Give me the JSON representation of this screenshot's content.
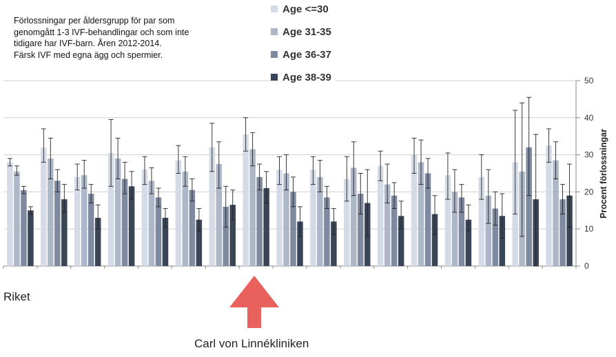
{
  "title_lines": [
    "Förlossningar per åldersgrupp för par som",
    "genomgått 1-3 IVF-behandlingar och som inte",
    "tidigare har IVF-barn. Åren 2012-2014.",
    "Färsk IVF med egna ägg och spermier."
  ],
  "annotations": {
    "riket": "Riket",
    "clinic": "Carl von Linnékliniken"
  },
  "chart_data": {
    "type": "bar",
    "title": "Förlossningar per åldersgrupp för par som genomgått 1-3 IVF-behandlingar och som inte tidigare har IVF-barn. Åren 2012-2014. Färsk IVF med egna ägg och spermier.",
    "ylabel": "Procent förlossningar",
    "xlabel": "",
    "ylim": [
      0,
      50
    ],
    "yticks": [
      0,
      10,
      20,
      30,
      40,
      50
    ],
    "grid": true,
    "legend_position": "top-center",
    "error_bars": true,
    "group_count": 17,
    "series": [
      {
        "name": "Age <=30",
        "color": "#d5dbe6",
        "values": [
          28,
          32,
          24,
          30.5,
          26,
          28.5,
          32,
          35.5,
          26,
          26,
          23.5,
          27,
          30,
          24.5,
          24,
          28,
          32.5
        ],
        "error_low": [
          27,
          28,
          20.5,
          21.5,
          22,
          25,
          25.5,
          31,
          22,
          22,
          17.5,
          23,
          25,
          18,
          18,
          14,
          28
        ],
        "error_high": [
          29,
          37,
          27.5,
          39.5,
          29.5,
          32.5,
          38.5,
          40,
          29.5,
          29.5,
          29.5,
          31,
          34.5,
          30.5,
          30,
          42,
          37
        ]
      },
      {
        "name": "Age 31-35",
        "color": "#aeb7c7",
        "values": [
          25.5,
          29,
          24.5,
          29,
          23,
          25.5,
          27.5,
          31.5,
          25,
          24,
          26.5,
          22,
          28,
          20,
          19,
          25.5,
          28.5
        ],
        "error_low": [
          24.5,
          23.5,
          21,
          23.5,
          19.5,
          21.5,
          21,
          27,
          20.5,
          20,
          19,
          17,
          22,
          14.5,
          11.5,
          8,
          23.5
        ],
        "error_high": [
          27,
          34.5,
          28.5,
          34.5,
          26.5,
          29.5,
          33.5,
          36,
          30,
          28.5,
          33.5,
          27.5,
          34,
          26,
          26,
          44,
          33.5
        ]
      },
      {
        "name": "Age 36-37",
        "color": "#7f8aa0",
        "values": [
          20.5,
          23,
          19.5,
          23.5,
          18.5,
          20.5,
          16,
          24,
          20,
          18.5,
          19.5,
          19,
          25,
          18.5,
          15.5,
          32,
          18
        ],
        "error_low": [
          19.5,
          20,
          17,
          19.5,
          16,
          17.5,
          10.5,
          20.5,
          16,
          15.5,
          14,
          15.5,
          21,
          14.5,
          11,
          19,
          14
        ],
        "error_high": [
          21.5,
          26,
          22,
          28,
          21,
          23.5,
          21.5,
          27.5,
          24,
          21.5,
          25,
          22.5,
          29,
          22,
          20,
          45.5,
          22
        ]
      },
      {
        "name": "Age 38-39",
        "color": "#3a4558",
        "values": [
          15,
          18,
          13,
          21.5,
          13,
          12.5,
          16.5,
          21,
          12,
          12,
          17,
          13.5,
          14,
          12.5,
          13.5,
          18,
          19
        ],
        "error_low": [
          14,
          14.5,
          10,
          18,
          10.5,
          9.5,
          12.5,
          17,
          8,
          8.5,
          8,
          10,
          8.5,
          9.5,
          7.5,
          0,
          10.5
        ],
        "error_high": [
          16,
          22,
          16.5,
          25.5,
          15.5,
          15.5,
          20.5,
          25.5,
          16,
          15.5,
          26,
          17.5,
          19,
          16.5,
          19.5,
          35.5,
          27.5
        ]
      }
    ]
  },
  "arrow_color": "#e8615d",
  "axis_color": "#8a8a8a",
  "grid_color": "#cfcfcf"
}
